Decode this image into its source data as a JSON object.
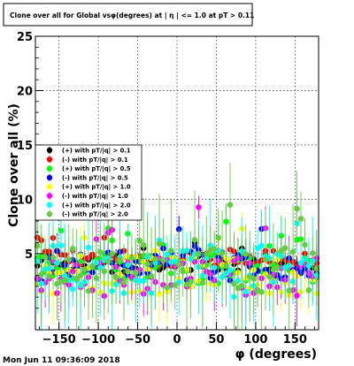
{
  "chart_data": {
    "type": "scatter",
    "title": "Clone  over all for Global vsφ(degrees) at | η | <= 1.0 at pT > 0.11",
    "xlabel": "φ (degrees)",
    "ylabel": "Clone  over all (%)",
    "xlim": [
      -180,
      180
    ],
    "ylim": [
      -2,
      25
    ],
    "x_ticks": [
      -150,
      -100,
      -50,
      0,
      50,
      100,
      150
    ],
    "x_tick_labels": [
      "−150",
      "−100",
      "−50",
      "0",
      "50",
      "100",
      "150"
    ],
    "y_ticks": [
      5,
      10,
      15,
      20,
      25
    ],
    "y_tick_labels": [
      "5",
      "10",
      "15",
      "20",
      "25"
    ],
    "grid": true,
    "legend_position": "left",
    "series": [
      {
        "name": "(+) with pT/|q| > 0.1",
        "color": "#000000",
        "base": 4.0,
        "spread": 0.8,
        "err": 0.7,
        "seed": 1
      },
      {
        "name": "(-) with pT/|q| > 0.1",
        "color": "#ff0000",
        "base": 4.6,
        "spread": 0.8,
        "err": 0.7,
        "seed": 2
      },
      {
        "name": "(+) with pT/|q| > 0.5",
        "color": "#00ff00",
        "base": 3.6,
        "spread": 1.4,
        "err": 1.5,
        "seed": 3
      },
      {
        "name": "(-) with pT/|q| > 0.5",
        "color": "#0000ff",
        "base": 3.9,
        "spread": 1.4,
        "err": 1.5,
        "seed": 4
      },
      {
        "name": "(+) with pT/|q| > 1.0",
        "color": "#ffff00",
        "base": 3.0,
        "spread": 1.8,
        "err": 2.2,
        "seed": 5
      },
      {
        "name": "(-) with pT/|q| > 1.0",
        "color": "#ff00ff",
        "base": 2.8,
        "spread": 1.8,
        "err": 2.2,
        "seed": 6
      },
      {
        "name": "(+) with pT/|q| > 2.0",
        "color": "#00ffff",
        "base": 3.4,
        "spread": 2.4,
        "err": 3.5,
        "seed": 7
      },
      {
        "name": "(-) with pT/|q| > 2.0",
        "color": "#66cc44",
        "base": 3.8,
        "spread": 2.4,
        "err": 3.5,
        "seed": 8
      }
    ],
    "n_points_per_series": 72
  },
  "footer": {
    "date": "Mon Jun 11 09:36:09 2018"
  }
}
